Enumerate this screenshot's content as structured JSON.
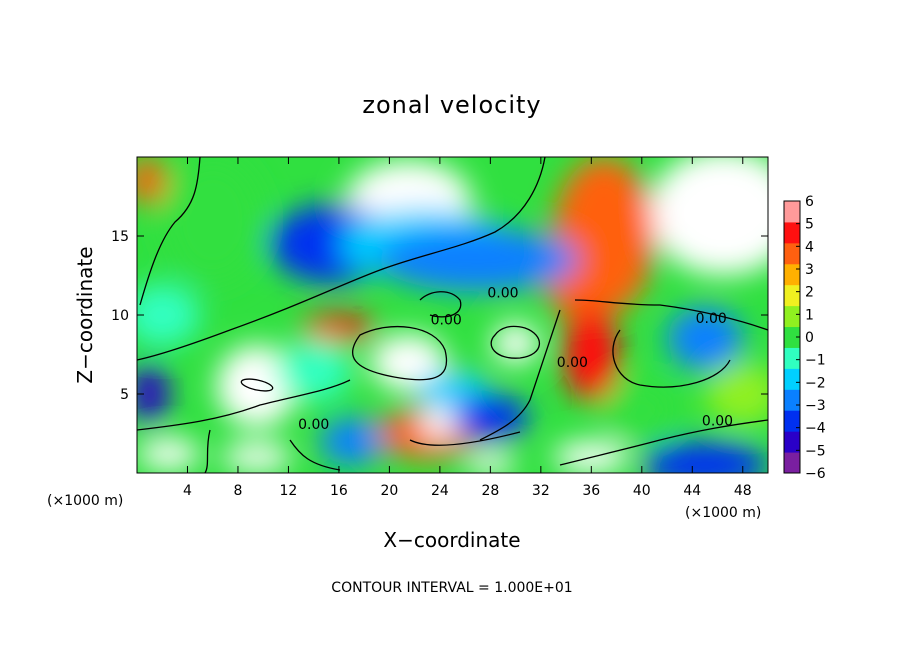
{
  "chart_data": {
    "type": "heatmap",
    "title": "zonal velocity",
    "xlabel": "X−coordinate",
    "ylabel": "Z−coordinate",
    "x_unit": "(×1000 m)",
    "x_ticks": [
      4,
      8,
      12,
      16,
      20,
      24,
      28,
      32,
      36,
      40,
      44,
      48
    ],
    "x_tick_labels": [
      "4",
      "8",
      "12",
      "16",
      "20",
      "24",
      "28",
      "32",
      "36",
      "40",
      "44",
      "48"
    ],
    "y_ticks": [
      5,
      10,
      15
    ],
    "y_tick_labels": [
      "5",
      "10",
      "15"
    ],
    "xlim": [
      0,
      50
    ],
    "ylim": [
      0,
      20
    ],
    "colorbar_ticks": [
      6,
      5,
      4,
      3,
      2,
      1,
      0,
      -1,
      -2,
      -3,
      -4,
      -5,
      -6
    ],
    "colorbar_labels": [
      "6",
      "5",
      "4",
      "3",
      "2",
      "1",
      "0",
      "−1",
      "−2",
      "−3",
      "−4",
      "−5",
      "−6"
    ],
    "colorbar_range": [
      -6,
      6
    ],
    "colorbar_colors": [
      "#7a1fa0",
      "#2a00c8",
      "#0030f0",
      "#0a80ff",
      "#00d0ff",
      "#30ffc0",
      "#30e040",
      "#90f020",
      "#f0f020",
      "#ffb000",
      "#ff6010",
      "#ff1010",
      "#ff9a9a"
    ],
    "contour_labels": [
      {
        "text": "0.00",
        "x": 29.0,
        "y": 11.1
      },
      {
        "text": "0.00",
        "x": 24.5,
        "y": 9.4
      },
      {
        "text": "0.00",
        "x": 45.5,
        "y": 9.5
      },
      {
        "text": "0.00",
        "x": 34.5,
        "y": 6.7
      },
      {
        "text": "0.00",
        "x": 14.0,
        "y": 2.8
      },
      {
        "text": "0.00",
        "x": 46.0,
        "y": 3.0
      }
    ],
    "footer": "CONTOUR INTERVAL = 1.000E+01",
    "blobs": [
      {
        "x": 21.5,
        "y": 17.2,
        "rx": 5.0,
        "ry": 2.6,
        "v": 7
      },
      {
        "x": 46.5,
        "y": 16.5,
        "rx": 6.0,
        "ry": 4.0,
        "v": 7
      },
      {
        "x": 37.0,
        "y": 15.0,
        "rx": 4.0,
        "ry": 5.0,
        "v": 4
      },
      {
        "x": 35.5,
        "y": 12.0,
        "rx": 3.0,
        "ry": 2.5,
        "v": 4
      },
      {
        "x": 15.5,
        "y": 14.5,
        "rx": 5.0,
        "ry": 2.5,
        "v": -4
      },
      {
        "x": 23.0,
        "y": 14.5,
        "rx": 7.0,
        "ry": 2.2,
        "v": -2
      },
      {
        "x": 27.0,
        "y": 13.5,
        "rx": 8.0,
        "ry": 2.0,
        "v": -3
      },
      {
        "x": 6.0,
        "y": 16.0,
        "rx": 4.0,
        "ry": 4.0,
        "v": 0
      },
      {
        "x": 2.0,
        "y": 10.0,
        "rx": 3.0,
        "ry": 2.0,
        "v": -1
      },
      {
        "x": 9.5,
        "y": 5.5,
        "rx": 3.2,
        "ry": 2.6,
        "v": 7
      },
      {
        "x": 21.5,
        "y": 7.0,
        "rx": 3.0,
        "ry": 1.8,
        "v": 7
      },
      {
        "x": 30.0,
        "y": 8.2,
        "rx": 1.8,
        "ry": 1.3,
        "v": 7
      },
      {
        "x": 36.0,
        "y": 7.5,
        "rx": 2.2,
        "ry": 3.0,
        "v": 5
      },
      {
        "x": 45.0,
        "y": 8.5,
        "rx": 3.0,
        "ry": 2.0,
        "v": -3
      },
      {
        "x": 25.0,
        "y": 5.0,
        "rx": 3.0,
        "ry": 1.5,
        "v": -2
      },
      {
        "x": 23.0,
        "y": 2.5,
        "rx": 4.0,
        "ry": 1.6,
        "v": 4
      },
      {
        "x": 24.0,
        "y": 3.2,
        "rx": 1.5,
        "ry": 1.0,
        "v": 7
      },
      {
        "x": 2.5,
        "y": 1.2,
        "rx": 2.5,
        "ry": 1.0,
        "v": 7
      },
      {
        "x": 9.5,
        "y": 1.0,
        "rx": 2.8,
        "ry": 0.9,
        "v": 7
      },
      {
        "x": 36.0,
        "y": 1.0,
        "rx": 3.0,
        "ry": 1.0,
        "v": 7
      },
      {
        "x": 28.0,
        "y": 0.6,
        "rx": 2.0,
        "ry": 0.7,
        "v": 7
      },
      {
        "x": 45.0,
        "y": 0.5,
        "rx": 5.0,
        "ry": 1.5,
        "v": -4
      },
      {
        "x": 1.0,
        "y": 5.0,
        "rx": 1.5,
        "ry": 2.0,
        "v": -5
      },
      {
        "x": 14.0,
        "y": 6.5,
        "rx": 3.0,
        "ry": 2.0,
        "v": -1
      },
      {
        "x": 28.0,
        "y": 3.5,
        "rx": 3.0,
        "ry": 1.5,
        "v": -4
      },
      {
        "x": 48.0,
        "y": 5.0,
        "rx": 3.0,
        "ry": 2.0,
        "v": 1
      },
      {
        "x": 40.0,
        "y": 4.0,
        "rx": 3.0,
        "ry": 2.0,
        "v": 0
      },
      {
        "x": 16.0,
        "y": 9.2,
        "rx": 3.0,
        "ry": 0.8,
        "v": 5
      },
      {
        "x": 17.0,
        "y": 2.0,
        "rx": 2.5,
        "ry": 1.5,
        "v": -3
      },
      {
        "x": 0.8,
        "y": 18.5,
        "rx": 1.5,
        "ry": 1.5,
        "v": 4
      }
    ]
  }
}
